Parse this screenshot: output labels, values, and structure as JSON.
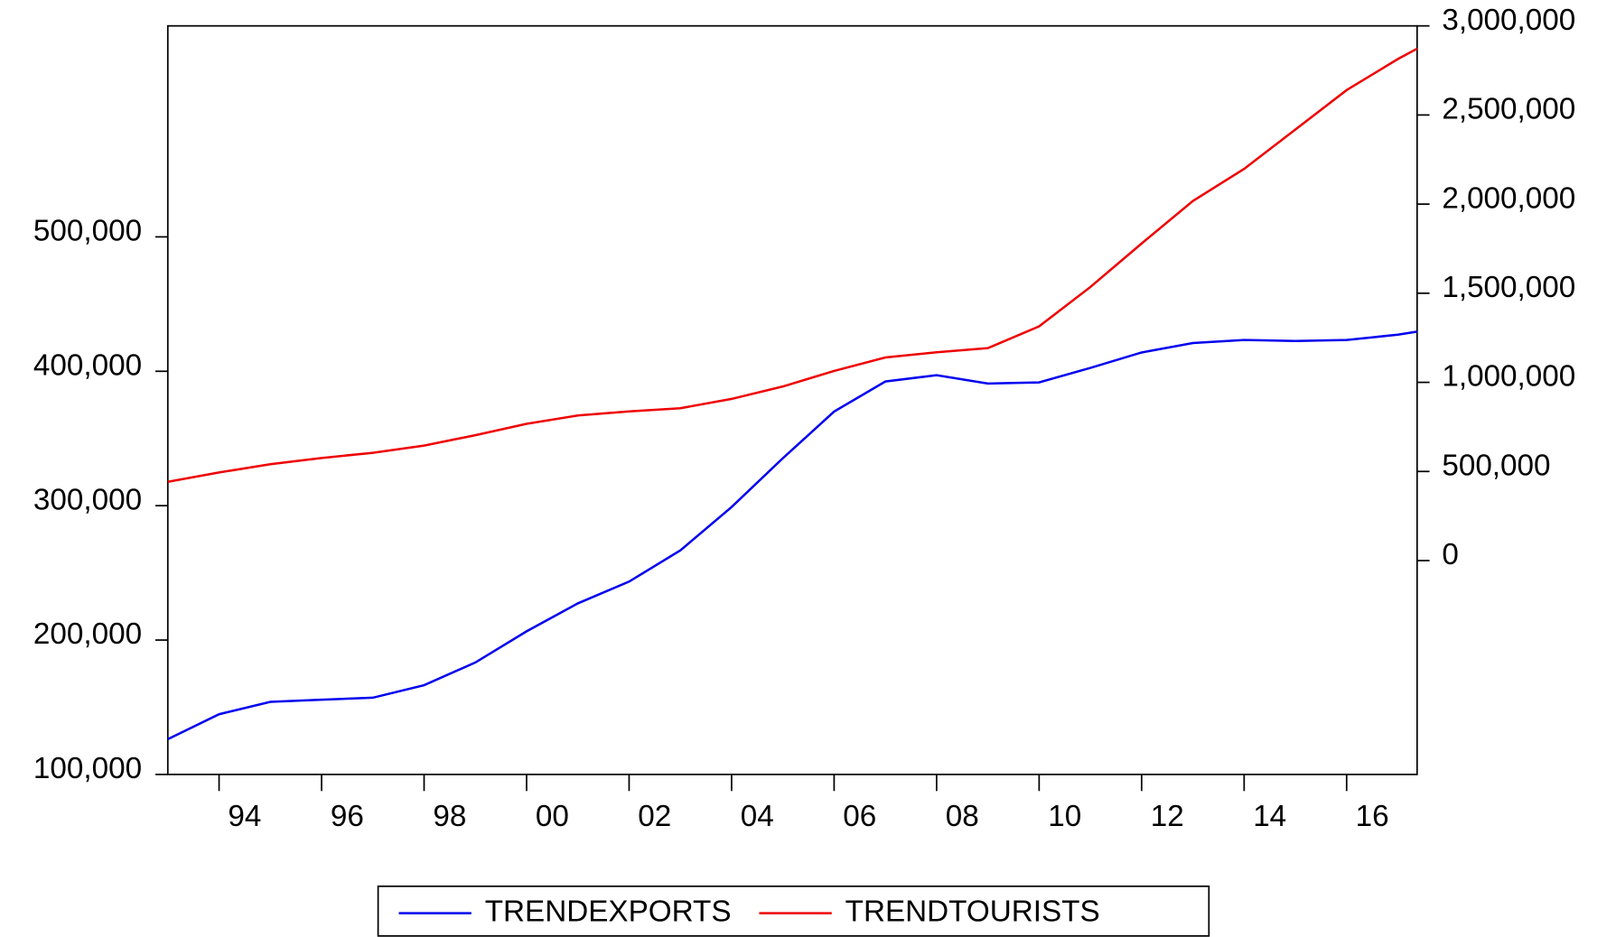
{
  "chart_data": {
    "type": "line",
    "x": [
      1993,
      1994,
      1995,
      1996,
      1997,
      1998,
      1999,
      2000,
      2001,
      2002,
      2003,
      2004,
      2005,
      2006,
      2007,
      2008,
      2009,
      2010,
      2011,
      2012,
      2013,
      2014,
      2015,
      2016,
      2017,
      2017.375
    ],
    "series": [
      {
        "name": "TRENDEXPORTS",
        "color": "#0000ee",
        "values": [
          126200,
          144800,
          154000,
          155600,
          157100,
          166400,
          183300,
          206500,
          227300,
          243500,
          266700,
          299000,
          335300,
          370000,
          392400,
          397100,
          390900,
          391700,
          402500,
          414000,
          421000,
          423300,
          422500,
          423300,
          427200,
          429500
        ]
      },
      {
        "name": "TRENDTOURISTS",
        "color": "#ee0000",
        "axis": "y2",
        "values": [
          441900,
          494200,
          540700,
          575600,
          604700,
          645300,
          703500,
          767400,
          814000,
          837200,
          854700,
          907000,
          976700,
          1064000,
          1139500,
          1168600,
          1191900,
          1314000,
          1534900,
          1779100,
          2017400,
          2197700,
          2418600,
          2639500,
          2814000,
          2872100
        ]
      }
    ],
    "xlim": [
      1993,
      2017.375
    ],
    "xticks": [
      {
        "value": 1994,
        "label": "94"
      },
      {
        "value": 1996,
        "label": "96"
      },
      {
        "value": 1998,
        "label": "98"
      },
      {
        "value": 2000,
        "label": "00"
      },
      {
        "value": 2002,
        "label": "02"
      },
      {
        "value": 2004,
        "label": "04"
      },
      {
        "value": 2006,
        "label": "06"
      },
      {
        "value": 2008,
        "label": "08"
      },
      {
        "value": 2010,
        "label": "10"
      },
      {
        "value": 2012,
        "label": "12"
      },
      {
        "value": 2014,
        "label": "14"
      },
      {
        "value": 2016,
        "label": "16"
      }
    ],
    "ylim": [
      100000,
      657000
    ],
    "yticks": [
      {
        "value": 100000,
        "label": "100,000"
      },
      {
        "value": 200000,
        "label": "200,000"
      },
      {
        "value": 300000,
        "label": "300,000"
      },
      {
        "value": 400000,
        "label": "400,000"
      },
      {
        "value": 500000,
        "label": "500,000"
      }
    ],
    "y2lim": [
      -1200000,
      3000000
    ],
    "y2ticks": [
      0,
      {
        "value": 500000,
        "label": "500,000"
      },
      {
        "value": 1000000,
        "label": "1,000,000"
      },
      {
        "value": 1500000,
        "label": "1,500,000"
      },
      {
        "value": 2000000,
        "label": "2,000,000"
      },
      {
        "value": 2500000,
        "label": "2,500,000"
      },
      {
        "value": 3000000,
        "label": "3,000,000"
      }
    ],
    "legend": "bottom"
  }
}
